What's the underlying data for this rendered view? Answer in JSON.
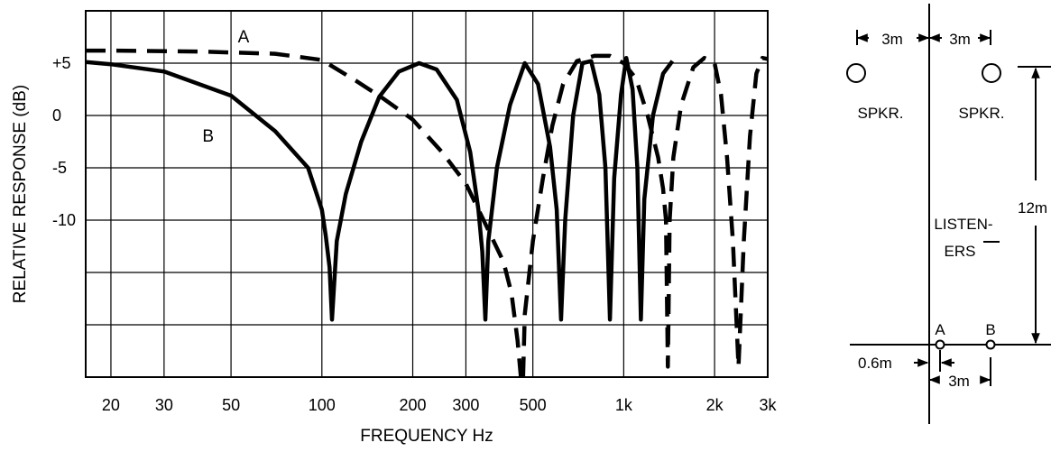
{
  "chart_data": {
    "type": "line",
    "title": "",
    "xlabel": "FREQUENCY Hz",
    "ylabel": "RELATIVE RESPONSE (dB)",
    "x_scale": "log",
    "x_ticks": [
      {
        "value": 20,
        "label": "20"
      },
      {
        "value": 30,
        "label": "30"
      },
      {
        "value": 50,
        "label": "50"
      },
      {
        "value": 100,
        "label": "100"
      },
      {
        "value": 200,
        "label": "200"
      },
      {
        "value": 300,
        "label": "300"
      },
      {
        "value": 500,
        "label": "500"
      },
      {
        "value": 1000,
        "label": "1k"
      },
      {
        "value": 2000,
        "label": "2k"
      },
      {
        "value": 3000,
        "label": "3k"
      }
    ],
    "y_ticks": [
      {
        "value": 5,
        "label": "+5"
      },
      {
        "value": 0,
        "label": "0"
      },
      {
        "value": -5,
        "label": "-5"
      },
      {
        "value": -10,
        "label": "-10"
      }
    ],
    "xlim": [
      16.5,
      3000
    ],
    "ylim": [
      -25,
      10
    ],
    "grid": true,
    "series": [
      {
        "name": "A",
        "style": "dashed",
        "points": [
          [
            16.5,
            6.2
          ],
          [
            20,
            6.2
          ],
          [
            40,
            6.1
          ],
          [
            70,
            5.9
          ],
          [
            100,
            5.3
          ],
          [
            130,
            3.3
          ],
          [
            160,
            1.6
          ],
          [
            200,
            -0.4
          ],
          [
            250,
            -3.5
          ],
          [
            300,
            -6.5
          ],
          [
            350,
            -10.5
          ],
          [
            400,
            -14
          ],
          [
            425,
            -17
          ],
          [
            445,
            -21.5
          ],
          [
            458,
            -25.5
          ],
          [
            462,
            -27
          ],
          [
            470,
            -19
          ],
          [
            500,
            -12
          ],
          [
            540,
            -6
          ],
          [
            580,
            -1
          ],
          [
            630,
            3
          ],
          [
            700,
            5.2
          ],
          [
            800,
            5.7
          ],
          [
            900,
            5.7
          ],
          [
            1000,
            5
          ],
          [
            1100,
            3.5
          ],
          [
            1200,
            0
          ],
          [
            1300,
            -4
          ],
          [
            1350,
            -7
          ],
          [
            1380,
            -10
          ],
          [
            1400,
            -24
          ],
          [
            1420,
            -10
          ],
          [
            1460,
            -4
          ],
          [
            1550,
            1
          ],
          [
            1700,
            4.6
          ],
          [
            1850,
            5.5
          ],
          [
            2000,
            5
          ],
          [
            2100,
            2
          ],
          [
            2200,
            -4
          ],
          [
            2300,
            -12
          ],
          [
            2400,
            -24
          ],
          [
            2500,
            -12
          ],
          [
            2620,
            -2
          ],
          [
            2750,
            4
          ],
          [
            2880,
            5.5
          ],
          [
            3000,
            5.4
          ]
        ]
      },
      {
        "name": "B",
        "style": "solid",
        "points": [
          [
            16.5,
            5.1
          ],
          [
            20,
            4.9
          ],
          [
            30,
            4.2
          ],
          [
            50,
            1.9
          ],
          [
            70,
            -1.5
          ],
          [
            90,
            -5
          ],
          [
            100,
            -9
          ],
          [
            103,
            -11.5
          ],
          [
            106,
            -14.5
          ],
          [
            108,
            -19.5
          ],
          [
            112,
            -12
          ],
          [
            120,
            -7.5
          ],
          [
            135,
            -2.5
          ],
          [
            155,
            1.8
          ],
          [
            180,
            4.2
          ],
          [
            210,
            5
          ],
          [
            240,
            4.4
          ],
          [
            280,
            1.5
          ],
          [
            310,
            -3.5
          ],
          [
            330,
            -9
          ],
          [
            340,
            -13
          ],
          [
            348,
            -19.5
          ],
          [
            356,
            -12
          ],
          [
            380,
            -5
          ],
          [
            420,
            1
          ],
          [
            470,
            5
          ],
          [
            520,
            3
          ],
          [
            570,
            -3
          ],
          [
            600,
            -9
          ],
          [
            620,
            -19.5
          ],
          [
            640,
            -10
          ],
          [
            680,
            0
          ],
          [
            730,
            5
          ],
          [
            780,
            5.2
          ],
          [
            830,
            2
          ],
          [
            870,
            -5
          ],
          [
            900,
            -19.5
          ],
          [
            930,
            -6
          ],
          [
            980,
            2
          ],
          [
            1020,
            5.5
          ],
          [
            1070,
            2.5
          ],
          [
            1110,
            -5
          ],
          [
            1140,
            -19.5
          ],
          [
            1170,
            -8
          ],
          [
            1250,
            0
          ],
          [
            1350,
            4
          ],
          [
            1450,
            5.2
          ]
        ]
      }
    ],
    "annotations": [
      {
        "text": "A",
        "x": 55,
        "y": 7
      },
      {
        "text": "B",
        "x": 42,
        "y": -2.5
      }
    ]
  },
  "diagram": {
    "top_left_spacing": "3m",
    "top_right_spacing": "3m",
    "speaker_label_left": "SPKR.",
    "speaker_label_right": "SPKR.",
    "distance_label": "12m",
    "listeners_label_line1": "LISTEN-",
    "listeners_label_line2": "ERS",
    "listener_a": "A",
    "listener_b": "B",
    "offset_label": "0.6m",
    "bottom_spacing": "3m"
  }
}
